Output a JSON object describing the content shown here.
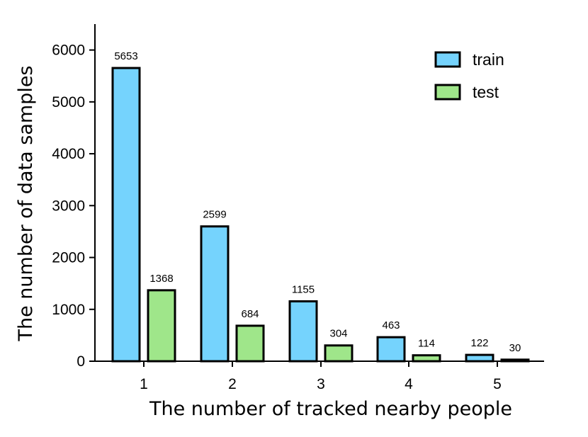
{
  "chart_data": {
    "type": "bar",
    "title": "",
    "xlabel": "The number of tracked nearby people",
    "ylabel": "The number of data samples",
    "categories": [
      "1",
      "2",
      "3",
      "4",
      "5"
    ],
    "series": [
      {
        "name": "train",
        "values": [
          5653,
          2599,
          1155,
          463,
          122
        ],
        "color": "#75d3fd"
      },
      {
        "name": "test",
        "values": [
          1368,
          684,
          304,
          114,
          30
        ],
        "color": "#9fe68a"
      }
    ],
    "ylim": [
      0,
      6500
    ],
    "yticks": [
      0,
      1000,
      2000,
      3000,
      4000,
      5000,
      6000
    ],
    "grid": false,
    "legend_position": "top-right",
    "bar_outline_color": "#000000"
  }
}
